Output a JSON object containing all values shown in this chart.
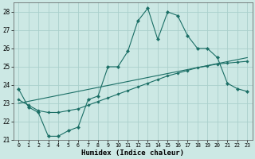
{
  "xlabel": "Humidex (Indice chaleur)",
  "background_color": "#cce8e4",
  "grid_color": "#aad0cc",
  "line_color": "#1a6e65",
  "xlim": [
    -0.5,
    23.5
  ],
  "ylim": [
    21,
    28.5
  ],
  "yticks": [
    21,
    22,
    23,
    24,
    25,
    26,
    27,
    28
  ],
  "xticks": [
    0,
    1,
    2,
    3,
    4,
    5,
    6,
    7,
    8,
    9,
    10,
    11,
    12,
    13,
    14,
    15,
    16,
    17,
    18,
    19,
    20,
    21,
    22,
    23
  ],
  "series1_x": [
    0,
    1,
    2,
    3,
    4,
    5,
    6,
    7,
    8,
    9,
    10,
    11,
    12,
    13,
    14,
    15,
    16,
    17,
    18,
    19,
    20,
    21,
    22,
    23
  ],
  "series1_y": [
    23.8,
    22.8,
    22.5,
    21.2,
    21.2,
    21.5,
    21.7,
    23.2,
    23.4,
    25.0,
    25.0,
    25.85,
    27.5,
    28.2,
    26.5,
    28.0,
    27.8,
    26.7,
    26.0,
    26.0,
    25.5,
    24.1,
    23.8,
    23.65
  ],
  "series2_x": [
    0,
    1,
    2,
    3,
    4,
    5,
    6,
    7,
    8,
    9,
    10,
    11,
    12,
    13,
    14,
    15,
    16,
    17,
    18,
    19,
    20,
    21,
    22,
    23
  ],
  "series2_y": [
    23.2,
    22.9,
    22.6,
    22.5,
    22.5,
    22.6,
    22.7,
    22.9,
    23.1,
    23.3,
    23.5,
    23.7,
    23.9,
    24.1,
    24.3,
    24.5,
    24.65,
    24.8,
    24.95,
    25.05,
    25.15,
    25.2,
    25.25,
    25.3
  ],
  "series3_x": [
    0,
    23
  ],
  "series3_y": [
    23.0,
    25.5
  ]
}
